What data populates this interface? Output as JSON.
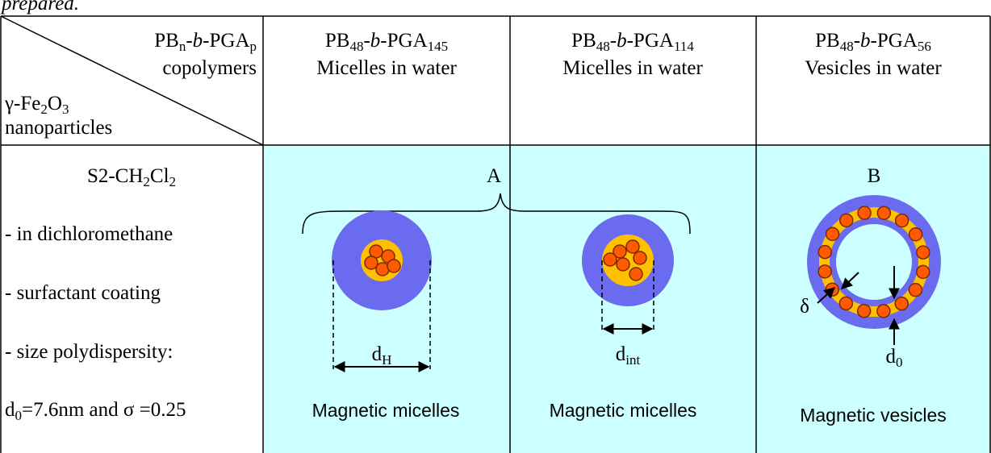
{
  "caption": "prepared.",
  "corner": {
    "top": [
      "PB",
      "n",
      "-",
      "b",
      "-PGA",
      "p"
    ],
    "top2": "copolymers",
    "bottom": [
      "γ-Fe",
      "2",
      "O",
      "3"
    ],
    "bottom2": "nanoparticles"
  },
  "columns": [
    {
      "name": [
        "PB",
        "48",
        "-",
        "b",
        "-PGA",
        "145"
      ],
      "desc": "Micelles in water"
    },
    {
      "name": [
        "PB",
        "48",
        "-",
        "b",
        "-PGA",
        "114"
      ],
      "desc": "Micelles in water"
    },
    {
      "name": [
        "PB",
        "48",
        "-",
        "b",
        "-PGA",
        "56"
      ],
      "desc": "Vesicles in water"
    }
  ],
  "sample": {
    "name": [
      "S2-CH",
      "2",
      "Cl",
      "2"
    ],
    "items": [
      "- in dichloromethane",
      "- surfactant coating",
      "- size polydispersity:"
    ],
    "last": [
      "d",
      "0",
      "=7.6nm and σ =0.25"
    ]
  },
  "diagram": {
    "label_a": "A",
    "label_b": "B",
    "d_h": [
      "d",
      "H"
    ],
    "d_int": [
      "d",
      "int"
    ],
    "delta": "δ",
    "d_0": [
      "d",
      "0"
    ],
    "captions": [
      "Magnetic micelles",
      "Magnetic micelles",
      "Magnetic vesicles"
    ]
  }
}
